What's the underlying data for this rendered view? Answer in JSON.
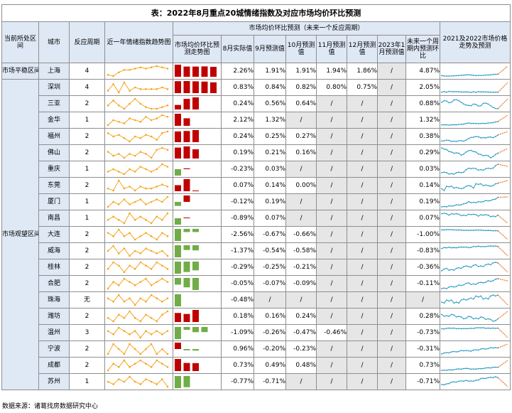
{
  "title": "表：2022年8月重点20城情绪指数及对应市场均价环比预测",
  "headers": {
    "zone": "当前所处区间",
    "city": "城市",
    "period": "反应周期",
    "trend": "近一年情绪指数趋势图",
    "group": "市场均价环比预测（未来一个反应周期）",
    "bar_chart": "市场均价环比预测走势图",
    "aug": "8月实际值",
    "sep": "9月预测值",
    "oct": "10月预测值",
    "nov": "11月预测值",
    "dec": "12月预测值",
    "jan": "2023年1月预测值",
    "next": "未来一个周期内预测环比",
    "forecast": "2021及2022市场价格走势及预测"
  },
  "zones": [
    {
      "label": "市场平稳区间",
      "rows": 1
    },
    {
      "label": "市场观望区间",
      "rows": 19
    }
  ],
  "slash": "/",
  "colors": {
    "header_bg": "#dfe8f5",
    "bar_up": "#c00000",
    "bar_down": "#70ad47",
    "sentiment_line": "#f5a623",
    "price_line": "#2e9dc4",
    "forecast_line": "#ed7d31"
  },
  "rows": [
    {
      "city": "上海",
      "period": "4",
      "aug": "2.26%",
      "sep": "1.91%",
      "oct": "1.91%",
      "nov": "1.94%",
      "dec": "1.86%",
      "jan": "/",
      "next": "4.87%",
      "bars": [
        2.26,
        1.91,
        1.91,
        1.94,
        1.86
      ],
      "spark": [
        2,
        1,
        4,
        6,
        6,
        7,
        8,
        7,
        8,
        9,
        8,
        7
      ]
    },
    {
      "city": "深圳",
      "period": "4",
      "aug": "0.83%",
      "sep": "0.84%",
      "oct": "0.82%",
      "nov": "0.80%",
      "dec": "0.75%",
      "jan": "/",
      "next": "2.05%",
      "bars": [
        0.83,
        0.84,
        0.82,
        0.8,
        0.75
      ],
      "spark": [
        4,
        8,
        3,
        9,
        4,
        6,
        5,
        5,
        5,
        5,
        6,
        5
      ]
    },
    {
      "city": "三亚",
      "period": "2",
      "aug": "0.24%",
      "sep": "0.56%",
      "oct": "0.64%",
      "nov": "/",
      "dec": "/",
      "jan": "/",
      "next": "0.88%",
      "bars": [
        0.24,
        0.56,
        0.64
      ],
      "spark": [
        5,
        8,
        5,
        3,
        6,
        9,
        6,
        4,
        3,
        3,
        4,
        5
      ]
    },
    {
      "city": "金华",
      "period": "1",
      "aug": "2.12%",
      "sep": "1.32%",
      "oct": "/",
      "nov": "/",
      "dec": "/",
      "jan": "/",
      "next": "1.32%",
      "bars": [
        2.12,
        1.32
      ],
      "spark": [
        3,
        6,
        5,
        4,
        7,
        6,
        5,
        8,
        6,
        7,
        9,
        8
      ]
    },
    {
      "city": "福州",
      "period": "2",
      "aug": "0.24%",
      "sep": "0.25%",
      "oct": "0.27%",
      "nov": "/",
      "dec": "/",
      "jan": "/",
      "next": "0.38%",
      "bars": [
        0.24,
        0.25,
        0.27
      ],
      "spark": [
        8,
        6,
        7,
        5,
        3,
        6,
        5,
        7,
        6,
        4,
        8,
        9
      ]
    },
    {
      "city": "佛山",
      "period": "2",
      "aug": "0.19%",
      "sep": "0.21%",
      "oct": "0.16%",
      "nov": "/",
      "dec": "/",
      "jan": "/",
      "next": "0.29%",
      "bars": [
        0.19,
        0.21,
        0.16
      ],
      "spark": [
        6,
        4,
        5,
        3,
        5,
        4,
        6,
        5,
        3,
        7,
        8,
        7
      ]
    },
    {
      "city": "重庆",
      "period": "1",
      "aug": "-0.23%",
      "sep": "0.03%",
      "oct": "/",
      "nov": "/",
      "dec": "/",
      "jan": "/",
      "next": "0.03%",
      "bars": [
        -0.23,
        0.03
      ],
      "spark": [
        5,
        6,
        5,
        4,
        6,
        5,
        7,
        6,
        5,
        6,
        8,
        7
      ]
    },
    {
      "city": "东莞",
      "period": "2",
      "aug": "0.07%",
      "sep": "0.14%",
      "oct": "0.00%",
      "nov": "/",
      "dec": "/",
      "jan": "/",
      "next": "0.14%",
      "bars": [
        0.07,
        0.14,
        0.0
      ],
      "spark": [
        5,
        4,
        9,
        5,
        6,
        4,
        6,
        5,
        5,
        6,
        7,
        6
      ]
    },
    {
      "city": "厦门",
      "period": "1",
      "aug": "-0.12%",
      "sep": "0.19%",
      "oct": "/",
      "nov": "/",
      "dec": "/",
      "jan": "/",
      "next": "0.19%",
      "bars": [
        -0.12,
        0.19
      ],
      "spark": [
        4,
        6,
        5,
        7,
        5,
        6,
        7,
        5,
        6,
        7,
        6,
        8
      ]
    },
    {
      "city": "南昌",
      "period": "1",
      "aug": "-0.89%",
      "sep": "0.07%",
      "oct": "/",
      "nov": "/",
      "dec": "/",
      "jan": "/",
      "next": "0.07%",
      "bars": [
        -0.89,
        0.07
      ],
      "spark": [
        5,
        6,
        5,
        4,
        7,
        5,
        6,
        5,
        4,
        6,
        5,
        7
      ]
    },
    {
      "city": "大连",
      "period": "2",
      "aug": "-2.56%",
      "sep": "-0.67%",
      "oct": "-0.66%",
      "nov": "/",
      "dec": "/",
      "jan": "/",
      "next": "-1.00%",
      "bars": [
        -2.56,
        -0.67,
        -0.66
      ],
      "spark": [
        6,
        5,
        7,
        5,
        6,
        4,
        5,
        6,
        5,
        4,
        6,
        5
      ]
    },
    {
      "city": "威海",
      "period": "2",
      "aug": "-1.37%",
      "sep": "-0.54%",
      "oct": "-0.58%",
      "nov": "/",
      "dec": "/",
      "jan": "/",
      "next": "-0.83%",
      "bars": [
        -1.37,
        -0.54,
        -0.58
      ],
      "spark": [
        6,
        8,
        5,
        7,
        4,
        6,
        5,
        7,
        6,
        5,
        6,
        4
      ]
    },
    {
      "city": "桂林",
      "period": "2",
      "aug": "-0.29%",
      "sep": "-0.25%",
      "oct": "-0.21%",
      "nov": "/",
      "dec": "/",
      "jan": "/",
      "next": "-0.36%",
      "bars": [
        -0.29,
        -0.25,
        -0.21
      ],
      "spark": [
        5,
        7,
        6,
        4,
        6,
        5,
        7,
        6,
        5,
        7,
        6,
        5
      ]
    },
    {
      "city": "合肥",
      "period": "2",
      "aug": "-0.05%",
      "sep": "-0.07%",
      "oct": "-0.09%",
      "nov": "/",
      "dec": "/",
      "jan": "/",
      "next": "-0.11%",
      "bars": [
        -0.05,
        -0.07,
        -0.09
      ],
      "spark": [
        4,
        6,
        5,
        7,
        6,
        5,
        6,
        7,
        5,
        6,
        7,
        6
      ]
    },
    {
      "city": "珠海",
      "period": "无",
      "aug": "-0.48%",
      "sep": "/",
      "oct": "/",
      "nov": "/",
      "dec": "/",
      "jan": "/",
      "next": "/",
      "bars": [
        -0.48
      ],
      "spark": [
        6,
        5,
        7,
        5,
        6,
        4,
        6,
        5,
        7,
        6,
        5,
        6
      ]
    },
    {
      "city": "潍坊",
      "period": "2",
      "aug": "0.18%",
      "sep": "0.16%",
      "oct": "0.24%",
      "nov": "/",
      "dec": "/",
      "jan": "/",
      "next": "0.28%",
      "bars": [
        0.18,
        0.16,
        0.24
      ],
      "spark": [
        5,
        4,
        6,
        5,
        7,
        5,
        4,
        6,
        5,
        4,
        6,
        7
      ]
    },
    {
      "city": "温州",
      "period": "3",
      "aug": "-1.09%",
      "sep": "-0.26%",
      "oct": "-0.47%",
      "nov": "-0.46%",
      "dec": "/",
      "jan": "/",
      "next": "-0.73%",
      "bars": [
        -1.09,
        -0.26,
        -0.47,
        -0.46
      ],
      "spark": [
        6,
        5,
        7,
        6,
        5,
        6,
        4,
        6,
        5,
        6,
        5,
        6
      ]
    },
    {
      "city": "宁波",
      "period": "2",
      "aug": "0.96%",
      "sep": "-0.20%",
      "oct": "-0.23%",
      "nov": "/",
      "dec": "/",
      "jan": "/",
      "next": "-0.31%",
      "bars": [
        0.96,
        -0.2,
        -0.23
      ],
      "spark": [
        5,
        7,
        6,
        5,
        7,
        6,
        5,
        6,
        7,
        5,
        6,
        5
      ]
    },
    {
      "city": "成都",
      "period": "2",
      "aug": "0.73%",
      "sep": "0.49%",
      "oct": "0.48%",
      "nov": "/",
      "dec": "/",
      "jan": "/",
      "next": "0.73%",
      "bars": [
        0.73,
        0.49,
        0.48
      ],
      "spark": [
        4,
        6,
        5,
        7,
        5,
        6,
        7,
        6,
        5,
        7,
        6,
        5
      ]
    },
    {
      "city": "苏州",
      "period": "1",
      "aug": "-0.77%",
      "sep": "-0.71%",
      "oct": "/",
      "nov": "/",
      "dec": "/",
      "jan": "/",
      "next": "-0.71%",
      "bars": [
        -0.77,
        -0.71
      ],
      "spark": [
        6,
        5,
        7,
        6,
        8,
        6,
        5,
        7,
        6,
        5,
        7,
        4
      ]
    }
  ],
  "source": "数据来源：诸葛找房数据研究中心"
}
